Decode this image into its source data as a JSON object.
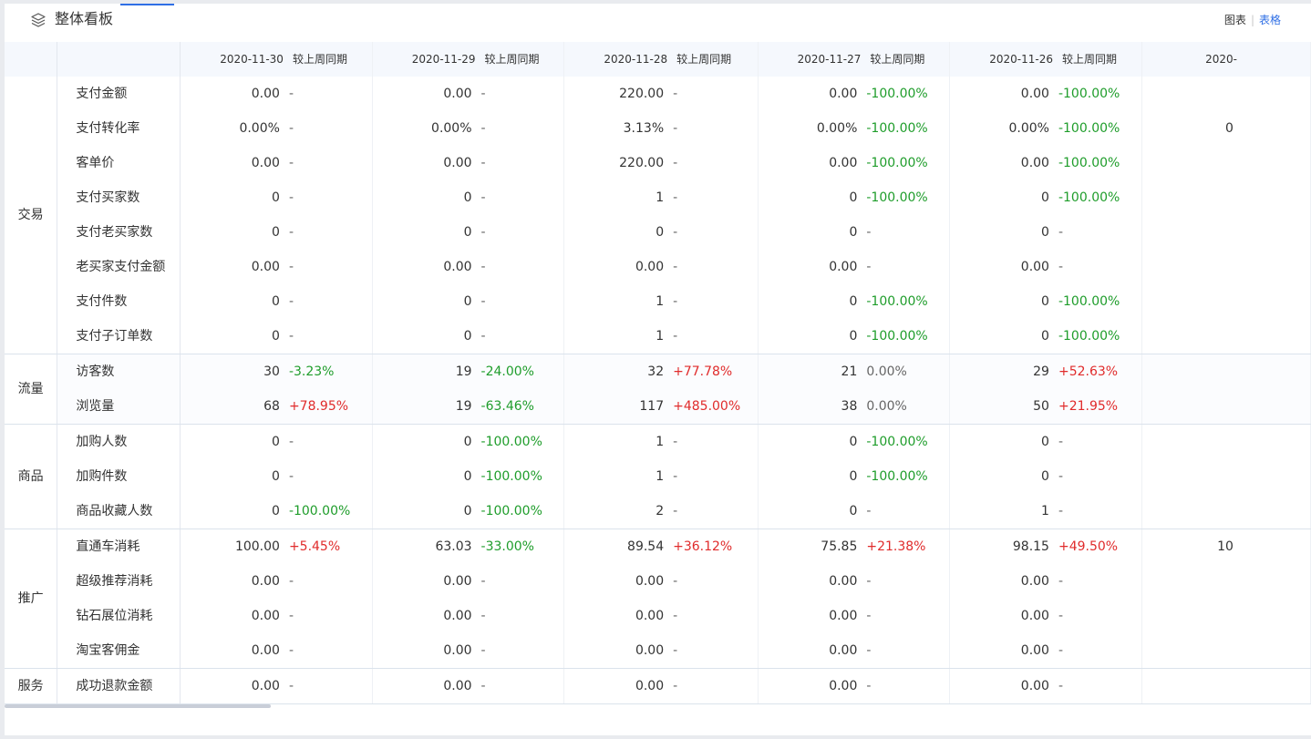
{
  "header": {
    "title": "整体看板",
    "view_chart": "图表",
    "view_separator": "|",
    "view_table": "表格"
  },
  "columns": [
    {
      "date": "2020-11-30",
      "compare": "较上周同期"
    },
    {
      "date": "2020-11-29",
      "compare": "较上周同期"
    },
    {
      "date": "2020-11-28",
      "compare": "较上周同期"
    },
    {
      "date": "2020-11-27",
      "compare": "较上周同期"
    },
    {
      "date": "2020-11-26",
      "compare": "较上周同期"
    },
    {
      "date": "2020-",
      "compare": ""
    }
  ],
  "groups": [
    {
      "name": "交易",
      "rows": [
        {
          "metric": "支付金额",
          "cells": [
            [
              "0.00",
              "-"
            ],
            [
              "0.00",
              "-"
            ],
            [
              "220.00",
              "-"
            ],
            [
              "0.00",
              "-100.00%"
            ],
            [
              "0.00",
              "-100.00%"
            ]
          ],
          "partial": ""
        },
        {
          "metric": "支付转化率",
          "cells": [
            [
              "0.00%",
              "-"
            ],
            [
              "0.00%",
              "-"
            ],
            [
              "3.13%",
              "-"
            ],
            [
              "0.00%",
              "-100.00%"
            ],
            [
              "0.00%",
              "-100.00%"
            ]
          ],
          "partial": "0"
        },
        {
          "metric": "客单价",
          "cells": [
            [
              "0.00",
              "-"
            ],
            [
              "0.00",
              "-"
            ],
            [
              "220.00",
              "-"
            ],
            [
              "0.00",
              "-100.00%"
            ],
            [
              "0.00",
              "-100.00%"
            ]
          ],
          "partial": ""
        },
        {
          "metric": "支付买家数",
          "cells": [
            [
              "0",
              "-"
            ],
            [
              "0",
              "-"
            ],
            [
              "1",
              "-"
            ],
            [
              "0",
              "-100.00%"
            ],
            [
              "0",
              "-100.00%"
            ]
          ],
          "partial": ""
        },
        {
          "metric": "支付老买家数",
          "cells": [
            [
              "0",
              "-"
            ],
            [
              "0",
              "-"
            ],
            [
              "0",
              "-"
            ],
            [
              "0",
              "-"
            ],
            [
              "0",
              "-"
            ]
          ],
          "partial": ""
        },
        {
          "metric": "老买家支付金额",
          "cells": [
            [
              "0.00",
              "-"
            ],
            [
              "0.00",
              "-"
            ],
            [
              "0.00",
              "-"
            ],
            [
              "0.00",
              "-"
            ],
            [
              "0.00",
              "-"
            ]
          ],
          "partial": ""
        },
        {
          "metric": "支付件数",
          "cells": [
            [
              "0",
              "-"
            ],
            [
              "0",
              "-"
            ],
            [
              "1",
              "-"
            ],
            [
              "0",
              "-100.00%"
            ],
            [
              "0",
              "-100.00%"
            ]
          ],
          "partial": ""
        },
        {
          "metric": "支付子订单数",
          "cells": [
            [
              "0",
              "-"
            ],
            [
              "0",
              "-"
            ],
            [
              "1",
              "-"
            ],
            [
              "0",
              "-100.00%"
            ],
            [
              "0",
              "-100.00%"
            ]
          ],
          "partial": ""
        }
      ]
    },
    {
      "name": "流量",
      "rows": [
        {
          "metric": "访客数",
          "cells": [
            [
              "30",
              "-3.23%"
            ],
            [
              "19",
              "-24.00%"
            ],
            [
              "32",
              "+77.78%"
            ],
            [
              "21",
              "0.00%"
            ],
            [
              "29",
              "+52.63%"
            ]
          ],
          "partial": ""
        },
        {
          "metric": "浏览量",
          "cells": [
            [
              "68",
              "+78.95%"
            ],
            [
              "19",
              "-63.46%"
            ],
            [
              "117",
              "+485.00%"
            ],
            [
              "38",
              "0.00%"
            ],
            [
              "50",
              "+21.95%"
            ]
          ],
          "partial": ""
        }
      ]
    },
    {
      "name": "商品",
      "rows": [
        {
          "metric": "加购人数",
          "cells": [
            [
              "0",
              "-"
            ],
            [
              "0",
              "-100.00%"
            ],
            [
              "1",
              "-"
            ],
            [
              "0",
              "-100.00%"
            ],
            [
              "0",
              "-"
            ]
          ],
          "partial": ""
        },
        {
          "metric": "加购件数",
          "cells": [
            [
              "0",
              "-"
            ],
            [
              "0",
              "-100.00%"
            ],
            [
              "1",
              "-"
            ],
            [
              "0",
              "-100.00%"
            ],
            [
              "0",
              "-"
            ]
          ],
          "partial": ""
        },
        {
          "metric": "商品收藏人数",
          "cells": [
            [
              "0",
              "-100.00%"
            ],
            [
              "0",
              "-100.00%"
            ],
            [
              "2",
              "-"
            ],
            [
              "0",
              "-"
            ],
            [
              "1",
              "-"
            ]
          ],
          "partial": ""
        }
      ]
    },
    {
      "name": "推广",
      "rows": [
        {
          "metric": "直通车消耗",
          "cells": [
            [
              "100.00",
              "+5.45%"
            ],
            [
              "63.03",
              "-33.00%"
            ],
            [
              "89.54",
              "+36.12%"
            ],
            [
              "75.85",
              "+21.38%"
            ],
            [
              "98.15",
              "+49.50%"
            ]
          ],
          "partial": "10"
        },
        {
          "metric": "超级推荐消耗",
          "cells": [
            [
              "0.00",
              "-"
            ],
            [
              "0.00",
              "-"
            ],
            [
              "0.00",
              "-"
            ],
            [
              "0.00",
              "-"
            ],
            [
              "0.00",
              "-"
            ]
          ],
          "partial": ""
        },
        {
          "metric": "钻石展位消耗",
          "cells": [
            [
              "0.00",
              "-"
            ],
            [
              "0.00",
              "-"
            ],
            [
              "0.00",
              "-"
            ],
            [
              "0.00",
              "-"
            ],
            [
              "0.00",
              "-"
            ]
          ],
          "partial": ""
        },
        {
          "metric": "淘宝客佣金",
          "cells": [
            [
              "0.00",
              "-"
            ],
            [
              "0.00",
              "-"
            ],
            [
              "0.00",
              "-"
            ],
            [
              "0.00",
              "-"
            ],
            [
              "0.00",
              "-"
            ]
          ],
          "partial": ""
        }
      ]
    },
    {
      "name": "服务",
      "rows": [
        {
          "metric": "成功退款金额",
          "cells": [
            [
              "0.00",
              "-"
            ],
            [
              "0.00",
              "-"
            ],
            [
              "0.00",
              "-"
            ],
            [
              "0.00",
              "-"
            ],
            [
              "0.00",
              "-"
            ]
          ],
          "partial": ""
        }
      ]
    }
  ],
  "colors": {
    "increase": "#e02b2b",
    "decrease": "#1f9d2b",
    "accent": "#2f6fe5"
  },
  "icons": {
    "title_icon": "layers-icon"
  }
}
